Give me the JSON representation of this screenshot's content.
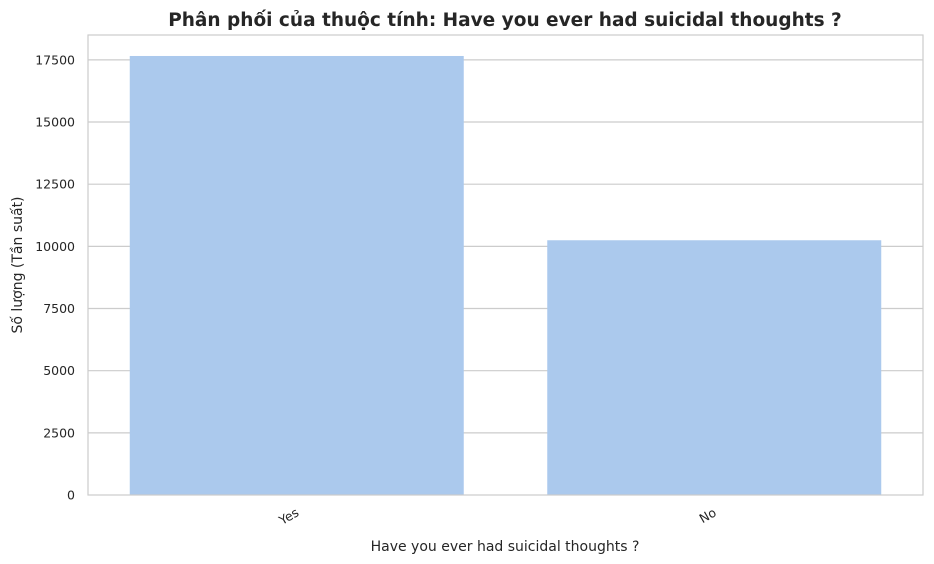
{
  "chart_data": {
    "type": "bar",
    "title": "Phân phối của thuộc tính: Have you ever had suicidal thoughts ?",
    "xlabel": "Have you ever had suicidal thoughts ?",
    "ylabel": "Số lượng (Tần suất)",
    "categories": [
      "Yes",
      "No"
    ],
    "values": [
      17656,
      10245
    ],
    "ylim": [
      0,
      18500
    ],
    "yticks": [
      0,
      2500,
      5000,
      7500,
      10000,
      12500,
      15000,
      17500
    ],
    "ytick_labels": [
      "0",
      "2500",
      "5000",
      "7500",
      "10000",
      "12500",
      "15000",
      "17500"
    ],
    "grid": "horizontal",
    "bar_color": "#abc9ed",
    "grid_color": "#cccccc",
    "text_color": "#262626",
    "x_tick_rotation_deg": -30
  }
}
